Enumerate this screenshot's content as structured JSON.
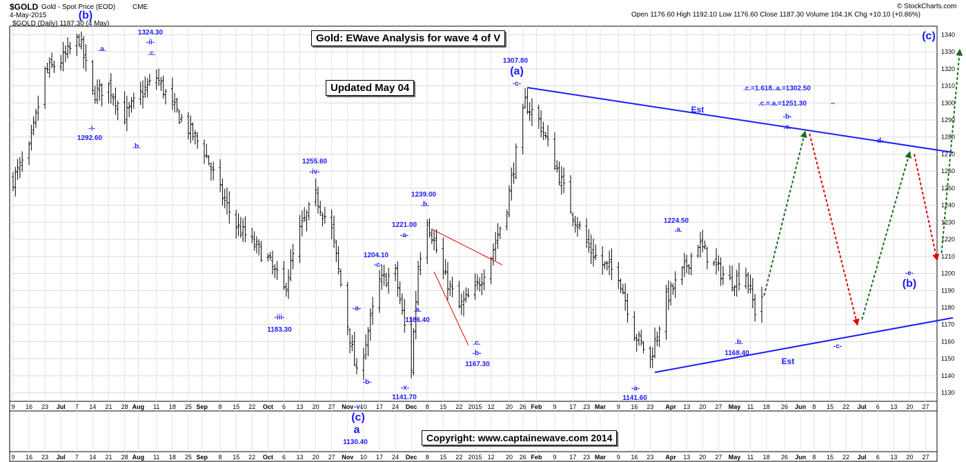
{
  "header": {
    "symbol": "$GOLD",
    "name": "Gold - Spot Price (EOD)",
    "exchange": "CME",
    "date": "4-May-2015",
    "series_label": "$GOLD (Daily) 1187.30 (4 May)",
    "brand": "© StockCharts.com",
    "stats": "Open 1176.60  High 1192.10  Low 1176.60  Close 1187.30  Volume 104.1K  Chg +10.10 (+0.86%)"
  },
  "title_box": "Gold: EWave Analysis for wave 4 of V",
  "updated_box": "Updated May 04",
  "copyright_box": "Copyright:   www.captainewave.com 2014",
  "wave_labels": {
    "b_top": "(b)",
    "a_dot": ".a.",
    "v1324": "1324.30",
    "ii": "-ii-",
    "c_dot1": ".c.",
    "i": "-i-",
    "v1292": "1292.60",
    "b_dot1": ".b.",
    "v1255": "1255.60",
    "iv": "-iv-",
    "iii": "-iii-",
    "v1183": "1183.30",
    "v1204": "1204.10",
    "c_dash1": "-c-",
    "v1221": "1221.00",
    "a_dash1": "-a-",
    "a_dash2": "-a-",
    "b_dash1": "-b-",
    "v1239": "1239.00",
    "b_dot2": ".b.",
    "a_dot2": ".a.",
    "v1186": "1186.40",
    "x": "-x-",
    "v1141_7": "1141.70",
    "c_dot2": ".c.",
    "b_dash2": "-b-",
    "v1167": "1167.30",
    "v1307": "1307.80",
    "a_paren": "(a)",
    "c_dash2": "-c-",
    "v1224": "1224.50",
    "a_dot3": ".a.",
    "a_dash3": "-a-",
    "v1141_6": "1141.60",
    "b_dot3": ".b.",
    "v1168": "1168.40",
    "est1": "Est",
    "est2": "Est",
    "fib1": ".c.=1.618..a.=1302.50",
    "fib2": ".c.=.a.=1251.30",
    "b_dash3": "-b-",
    "c_dot3": ".c.",
    "d_dash": "-d-",
    "c_dash3": "-c-",
    "e_dash": "-e-",
    "b_paren": "(b)",
    "c_paren_top": "(c)",
    "c_paren_low": "(c)",
    "a_low": "a",
    "v1130": "1130.40",
    "v_dash": "-v-"
  },
  "colors": {
    "wave_blue": "#1a1aff",
    "projection_up": "#1a6b1a",
    "projection_down": "#e00000",
    "trendline": "#1a1aff"
  },
  "chart_data": {
    "type": "line",
    "title": "Gold: EWave Analysis for wave 4 of V",
    "ylabel": "",
    "ylim": [
      1125,
      1345
    ],
    "y_ticks": [
      1130,
      1140,
      1150,
      1160,
      1170,
      1180,
      1190,
      1200,
      1210,
      1220,
      1230,
      1240,
      1250,
      1260,
      1270,
      1280,
      1290,
      1300,
      1310,
      1320,
      1330,
      1340
    ],
    "x_ticks": [
      "9",
      "16",
      "23",
      "Jul",
      "7",
      "14",
      "21",
      "28",
      "Aug",
      "11",
      "18",
      "25",
      "Sep",
      "8",
      "15",
      "22",
      "Oct",
      "6",
      "13",
      "20",
      "27",
      "Nov",
      "10",
      "17",
      "24",
      "Dec",
      "8",
      "15",
      "22",
      "2015",
      "12",
      "20",
      "26",
      "Feb",
      "9",
      "17",
      "23",
      "Mar",
      "9",
      "16",
      "23",
      "Apr",
      "13",
      "20",
      "27",
      "May",
      "11",
      "18",
      "26",
      "Jun",
      "8",
      "15",
      "22",
      "Jul",
      "6",
      "13",
      "20",
      "27"
    ],
    "x_tick_days": [
      0,
      7,
      14,
      21,
      28,
      35,
      42,
      49,
      55,
      63,
      70,
      77,
      83,
      91,
      98,
      105,
      112,
      119,
      126,
      133,
      140,
      147,
      154,
      161,
      168,
      175,
      182,
      189,
      196,
      203,
      210,
      218,
      224,
      230,
      238,
      246,
      252,
      258,
      266,
      273,
      280,
      289,
      296,
      303,
      310,
      317,
      324,
      331,
      339,
      346,
      352,
      359,
      366,
      373,
      380,
      387,
      394,
      401
    ],
    "series": [
      {
        "type": "price",
        "points": [
          [
            "2014-06-09",
            1255
          ],
          [
            "2014-06-16",
            1272
          ],
          [
            "2014-06-23",
            1318
          ],
          [
            "2014-07-01",
            1326
          ],
          [
            "2014-07-08",
            1338
          ],
          [
            "2014-07-14",
            1305
          ],
          [
            "2014-07-21",
            1310
          ],
          [
            "2014-07-28",
            1292
          ],
          [
            "2014-08-04",
            1305
          ],
          [
            "2014-08-11",
            1315
          ],
          [
            "2014-08-18",
            1298
          ],
          [
            "2014-08-25",
            1285
          ],
          [
            "2014-09-01",
            1272
          ],
          [
            "2014-09-08",
            1248
          ],
          [
            "2014-09-15",
            1228
          ],
          [
            "2014-09-22",
            1218
          ],
          [
            "2014-09-29",
            1208
          ],
          [
            "2014-10-06",
            1190
          ],
          [
            "2014-10-13",
            1225
          ],
          [
            "2014-10-20",
            1245
          ],
          [
            "2014-10-27",
            1225
          ],
          [
            "2014-11-03",
            1170
          ],
          [
            "2014-11-07",
            1140
          ],
          [
            "2014-11-10",
            1155
          ],
          [
            "2014-11-17",
            1195
          ],
          [
            "2014-11-24",
            1200
          ],
          [
            "2014-12-01",
            1145
          ],
          [
            "2014-12-04",
            1205
          ],
          [
            "2014-12-08",
            1232
          ],
          [
            "2014-12-15",
            1200
          ],
          [
            "2014-12-22",
            1180
          ],
          [
            "2014-12-29",
            1190
          ],
          [
            "2015-01-05",
            1210
          ],
          [
            "2015-01-12",
            1240
          ],
          [
            "2015-01-20",
            1300
          ],
          [
            "2015-01-26",
            1290
          ],
          [
            "2015-02-02",
            1265
          ],
          [
            "2015-02-09",
            1238
          ],
          [
            "2015-02-17",
            1215
          ],
          [
            "2015-02-23",
            1205
          ],
          [
            "2015-03-02",
            1200
          ],
          [
            "2015-03-09",
            1165
          ],
          [
            "2015-03-16",
            1150
          ],
          [
            "2015-03-23",
            1185
          ],
          [
            "2015-03-30",
            1200
          ],
          [
            "2015-04-06",
            1218
          ],
          [
            "2015-04-13",
            1205
          ],
          [
            "2015-04-20",
            1195
          ],
          [
            "2015-04-27",
            1200
          ],
          [
            "2015-05-01",
            1178
          ],
          [
            "2015-05-04",
            1187
          ]
        ]
      },
      {
        "type": "trendline",
        "name": "Est",
        "points": [
          [
            "2015-01-21",
            1309
          ],
          [
            "2015-07-27",
            1271
          ]
        ]
      },
      {
        "type": "trendline",
        "name": "Est",
        "points": [
          [
            "2015-03-18",
            1142
          ],
          [
            "2015-07-27",
            1174
          ]
        ]
      },
      {
        "type": "projection_up",
        "points": [
          [
            "2015-05-05",
            1187
          ],
          [
            "2015-05-23",
            1283
          ]
        ]
      },
      {
        "type": "projection_down",
        "points": [
          [
            "2015-05-25",
            1282
          ],
          [
            "2015-06-15",
            1170
          ]
        ]
      },
      {
        "type": "projection_up",
        "points": [
          [
            "2015-06-17",
            1173
          ],
          [
            "2015-07-08",
            1271
          ]
        ]
      },
      {
        "type": "projection_down",
        "points": [
          [
            "2015-07-10",
            1270
          ],
          [
            "2015-07-20",
            1208
          ]
        ]
      },
      {
        "type": "projection_up",
        "points": [
          [
            "2015-07-22",
            1212
          ],
          [
            "2015-07-30",
            1331
          ]
        ]
      }
    ]
  }
}
